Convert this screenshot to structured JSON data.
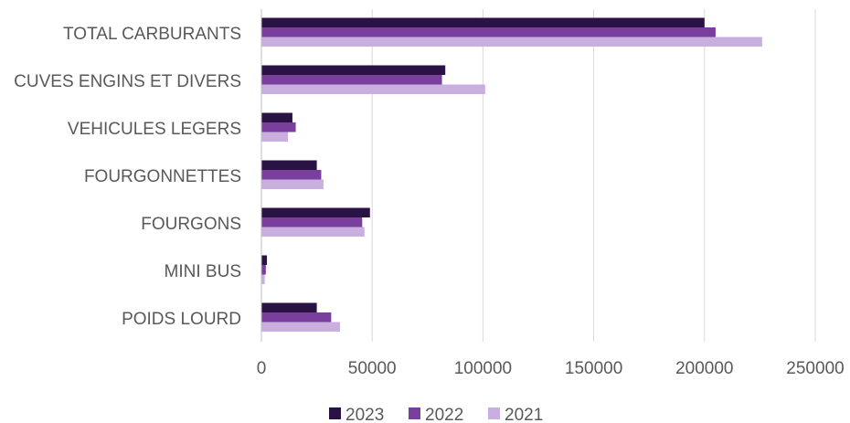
{
  "chart_data": {
    "type": "bar",
    "orientation": "horizontal",
    "categories": [
      "TOTAL CARBURANTS",
      "CUVES ENGINS ET DIVERS",
      "VEHICULES LEGERS",
      "FOURGONNETTES",
      "FOURGONS",
      "MINI BUS",
      "POIDS LOURD"
    ],
    "series": [
      {
        "name": "2023",
        "color": "#2a1245",
        "values": [
          200000,
          83000,
          14000,
          25000,
          49000,
          2500,
          25000
        ]
      },
      {
        "name": "2022",
        "color": "#7a3f9c",
        "values": [
          205000,
          81500,
          15500,
          27000,
          45500,
          2000,
          31500
        ]
      },
      {
        "name": "2021",
        "color": "#c9aee0",
        "values": [
          226000,
          101000,
          12000,
          28000,
          46500,
          1500,
          35500
        ]
      }
    ],
    "xticks": [
      "0",
      "50000",
      "100000",
      "150000",
      "200000",
      "250000"
    ],
    "xlim": [
      0,
      250000
    ],
    "title": "",
    "xlabel": "",
    "ylabel": "",
    "grid": "vertical",
    "legend": "bottom"
  }
}
